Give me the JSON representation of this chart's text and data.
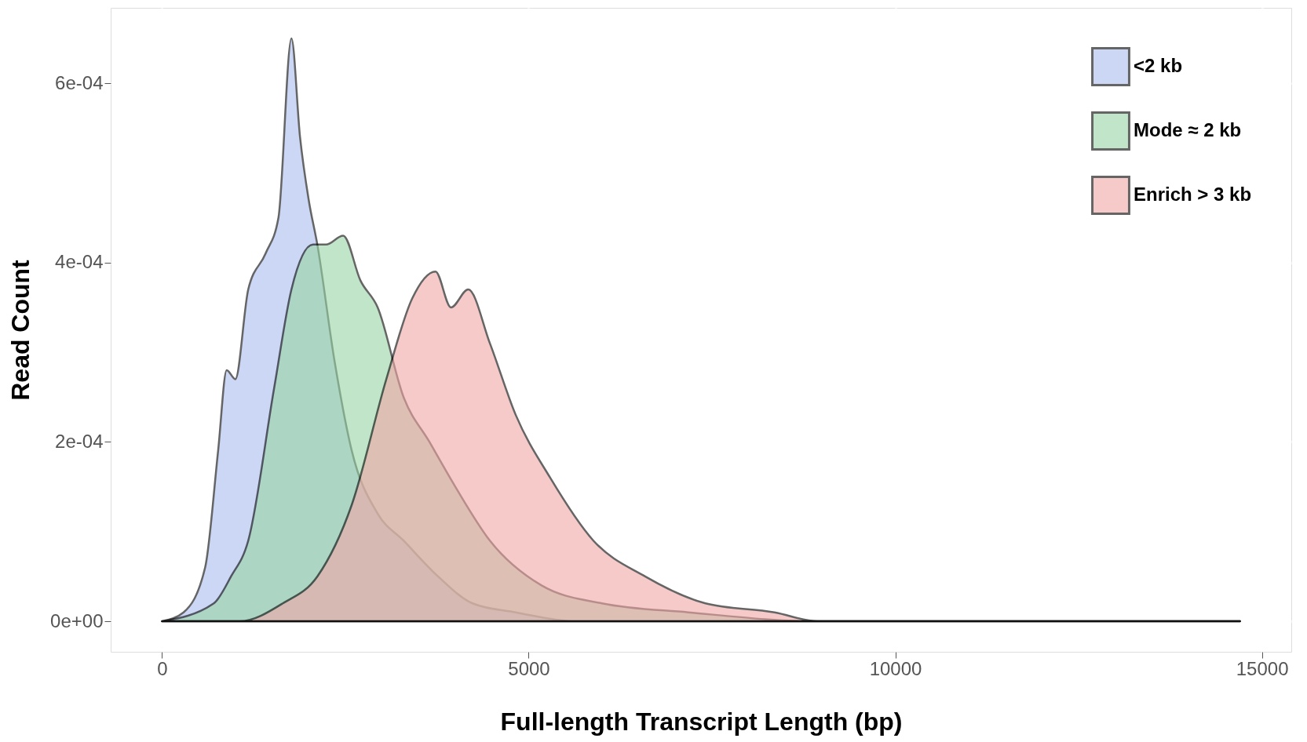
{
  "chart_data": {
    "type": "area",
    "xlabel": "Full-length Transcript Length (bp)",
    "ylabel": "Read Count",
    "xlim": [
      -700,
      15400
    ],
    "xticks": [
      0,
      5000,
      10000,
      15000
    ],
    "ylim": [
      -3.4e-05,
      0.000684
    ],
    "yticks": [
      {
        "value": 0,
        "label": "0e+00"
      },
      {
        "value": 0.0002,
        "label": "2e-04"
      },
      {
        "value": 0.0004,
        "label": "4e-04"
      },
      {
        "value": 0.0006,
        "label": "6e-04"
      }
    ],
    "grid": true,
    "legend": "top right",
    "series": [
      {
        "name": "<2 kb",
        "color": "#a9bdf0",
        "x": [
          0,
          294,
          588,
          765,
          882,
          1000,
          1176,
          1412,
          1588,
          1765,
          1882,
          2000,
          2118,
          2353,
          2588,
          2941,
          3294,
          3765,
          4235,
          4824,
          5647,
          6588,
          14700
        ],
        "values": [
          0,
          1e-05,
          6e-05,
          0.00019,
          0.00028,
          0.00027,
          0.00037,
          0.00041,
          0.00045,
          0.00065,
          0.00054,
          0.00047,
          0.00042,
          0.00029,
          0.00019,
          0.00012,
          9e-05,
          5e-05,
          2e-05,
          1e-05,
          0,
          0,
          0
        ]
      },
      {
        "name": "Mode ≈ 2 kb",
        "color": "#98d4a4",
        "x": [
          0,
          706,
          941,
          1176,
          1529,
          1765,
          2059,
          2235,
          2471,
          2706,
          2941,
          3294,
          3647,
          4000,
          4471,
          5176,
          6000,
          7176,
          8941,
          14700
        ],
        "values": [
          0,
          2e-05,
          5e-05,
          9e-05,
          0.00026,
          0.00037,
          0.00042,
          0.00042,
          0.00043,
          0.00038,
          0.00035,
          0.00025,
          0.0002,
          0.00015,
          9e-05,
          4e-05,
          2e-05,
          1e-05,
          0,
          0
        ]
      },
      {
        "name": "Enrich > 3 kb",
        "color": "#f2a7a7",
        "x": [
          0,
          1059,
          1647,
          2118,
          2588,
          3059,
          3412,
          3729,
          3941,
          4176,
          4471,
          4824,
          5294,
          5882,
          6588,
          7412,
          8353,
          8941,
          10118,
          14700
        ],
        "values": [
          0,
          0,
          2e-05,
          5e-05,
          0.00013,
          0.00027,
          0.00036,
          0.00039,
          0.00035,
          0.00037,
          0.00031,
          0.00023,
          0.00016,
          9e-05,
          5e-05,
          2e-05,
          1e-05,
          0,
          0,
          0
        ]
      }
    ]
  }
}
